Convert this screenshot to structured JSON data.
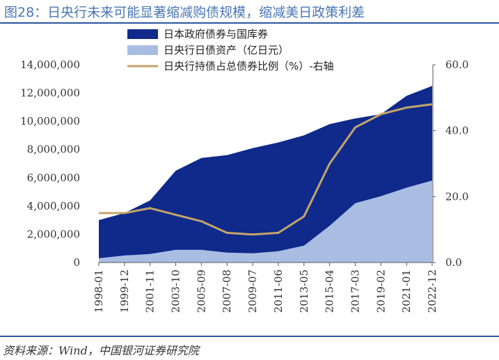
{
  "header": {
    "title": "图28：日央行未来可能显著缩减购债规模，缩减美日政策利差"
  },
  "footer": {
    "source": "资料来源：Wind，中国银河证券研究院"
  },
  "chart_data": {
    "type": "area",
    "categories": [
      "1998-01",
      "1999-12",
      "2001-11",
      "2003-10",
      "2005-09",
      "2007-08",
      "2009-07",
      "2011-06",
      "2013-05",
      "2015-04",
      "2017-03",
      "2019-02",
      "2021-01",
      "2022-12"
    ],
    "y_left": {
      "ticks": [
        "0",
        "2,000,000",
        "4,000,000",
        "6,000,000",
        "8,000,000",
        "10,000,000",
        "12,000,000",
        "14,000,000"
      ],
      "ylim": [
        0,
        14000000
      ]
    },
    "y_right": {
      "ticks": [
        "0.0",
        "20.0",
        "40.0",
        "60.0"
      ],
      "ylim": [
        0,
        60
      ]
    },
    "colors": {
      "gov_bonds": "#0f2a8a",
      "boj_holdings": "#a9bde3",
      "ratio": "#c4a46a"
    },
    "series": [
      {
        "name": "日本政府债券与国库券",
        "axis": "left",
        "values": [
          3000000,
          3500000,
          4400000,
          6500000,
          7400000,
          7600000,
          8100000,
          8500000,
          9000000,
          9800000,
          10200000,
          10500000,
          11800000,
          12500000
        ]
      },
      {
        "name": "日央行日债资产（亿日元）",
        "axis": "left",
        "values": [
          300000,
          500000,
          600000,
          900000,
          900000,
          700000,
          650000,
          800000,
          1200000,
          2600000,
          4200000,
          4700000,
          5300000,
          5800000
        ]
      },
      {
        "name": "日央行持债占总债券比例（%）-右轴",
        "axis": "right",
        "values": [
          15.0,
          15.0,
          16.5,
          14.5,
          12.5,
          9.0,
          8.5,
          9.0,
          14.0,
          30.0,
          41.0,
          45.0,
          47.0,
          48.0
        ]
      }
    ]
  }
}
